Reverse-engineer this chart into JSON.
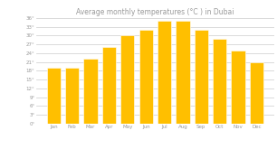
{
  "title": "Average monthly temperatures (°C ) in Dubai",
  "months": [
    "Jan",
    "Feb",
    "Mar",
    "Apr",
    "May",
    "Jun",
    "Jul",
    "Aug",
    "Sep",
    "Oct",
    "Nov",
    "Dec"
  ],
  "values": [
    19,
    19,
    22,
    26,
    30,
    32,
    35,
    35,
    32,
    29,
    25,
    21
  ],
  "bar_color": "#FFBF00",
  "bar_edge_color": "#FFFFFF",
  "background_color": "#FFFFFF",
  "grid_color": "#CCCCCC",
  "ylim": [
    0,
    36
  ],
  "ytick_step": 3,
  "title_fontsize": 5.5,
  "tick_fontsize": 4.0,
  "text_color": "#999999"
}
